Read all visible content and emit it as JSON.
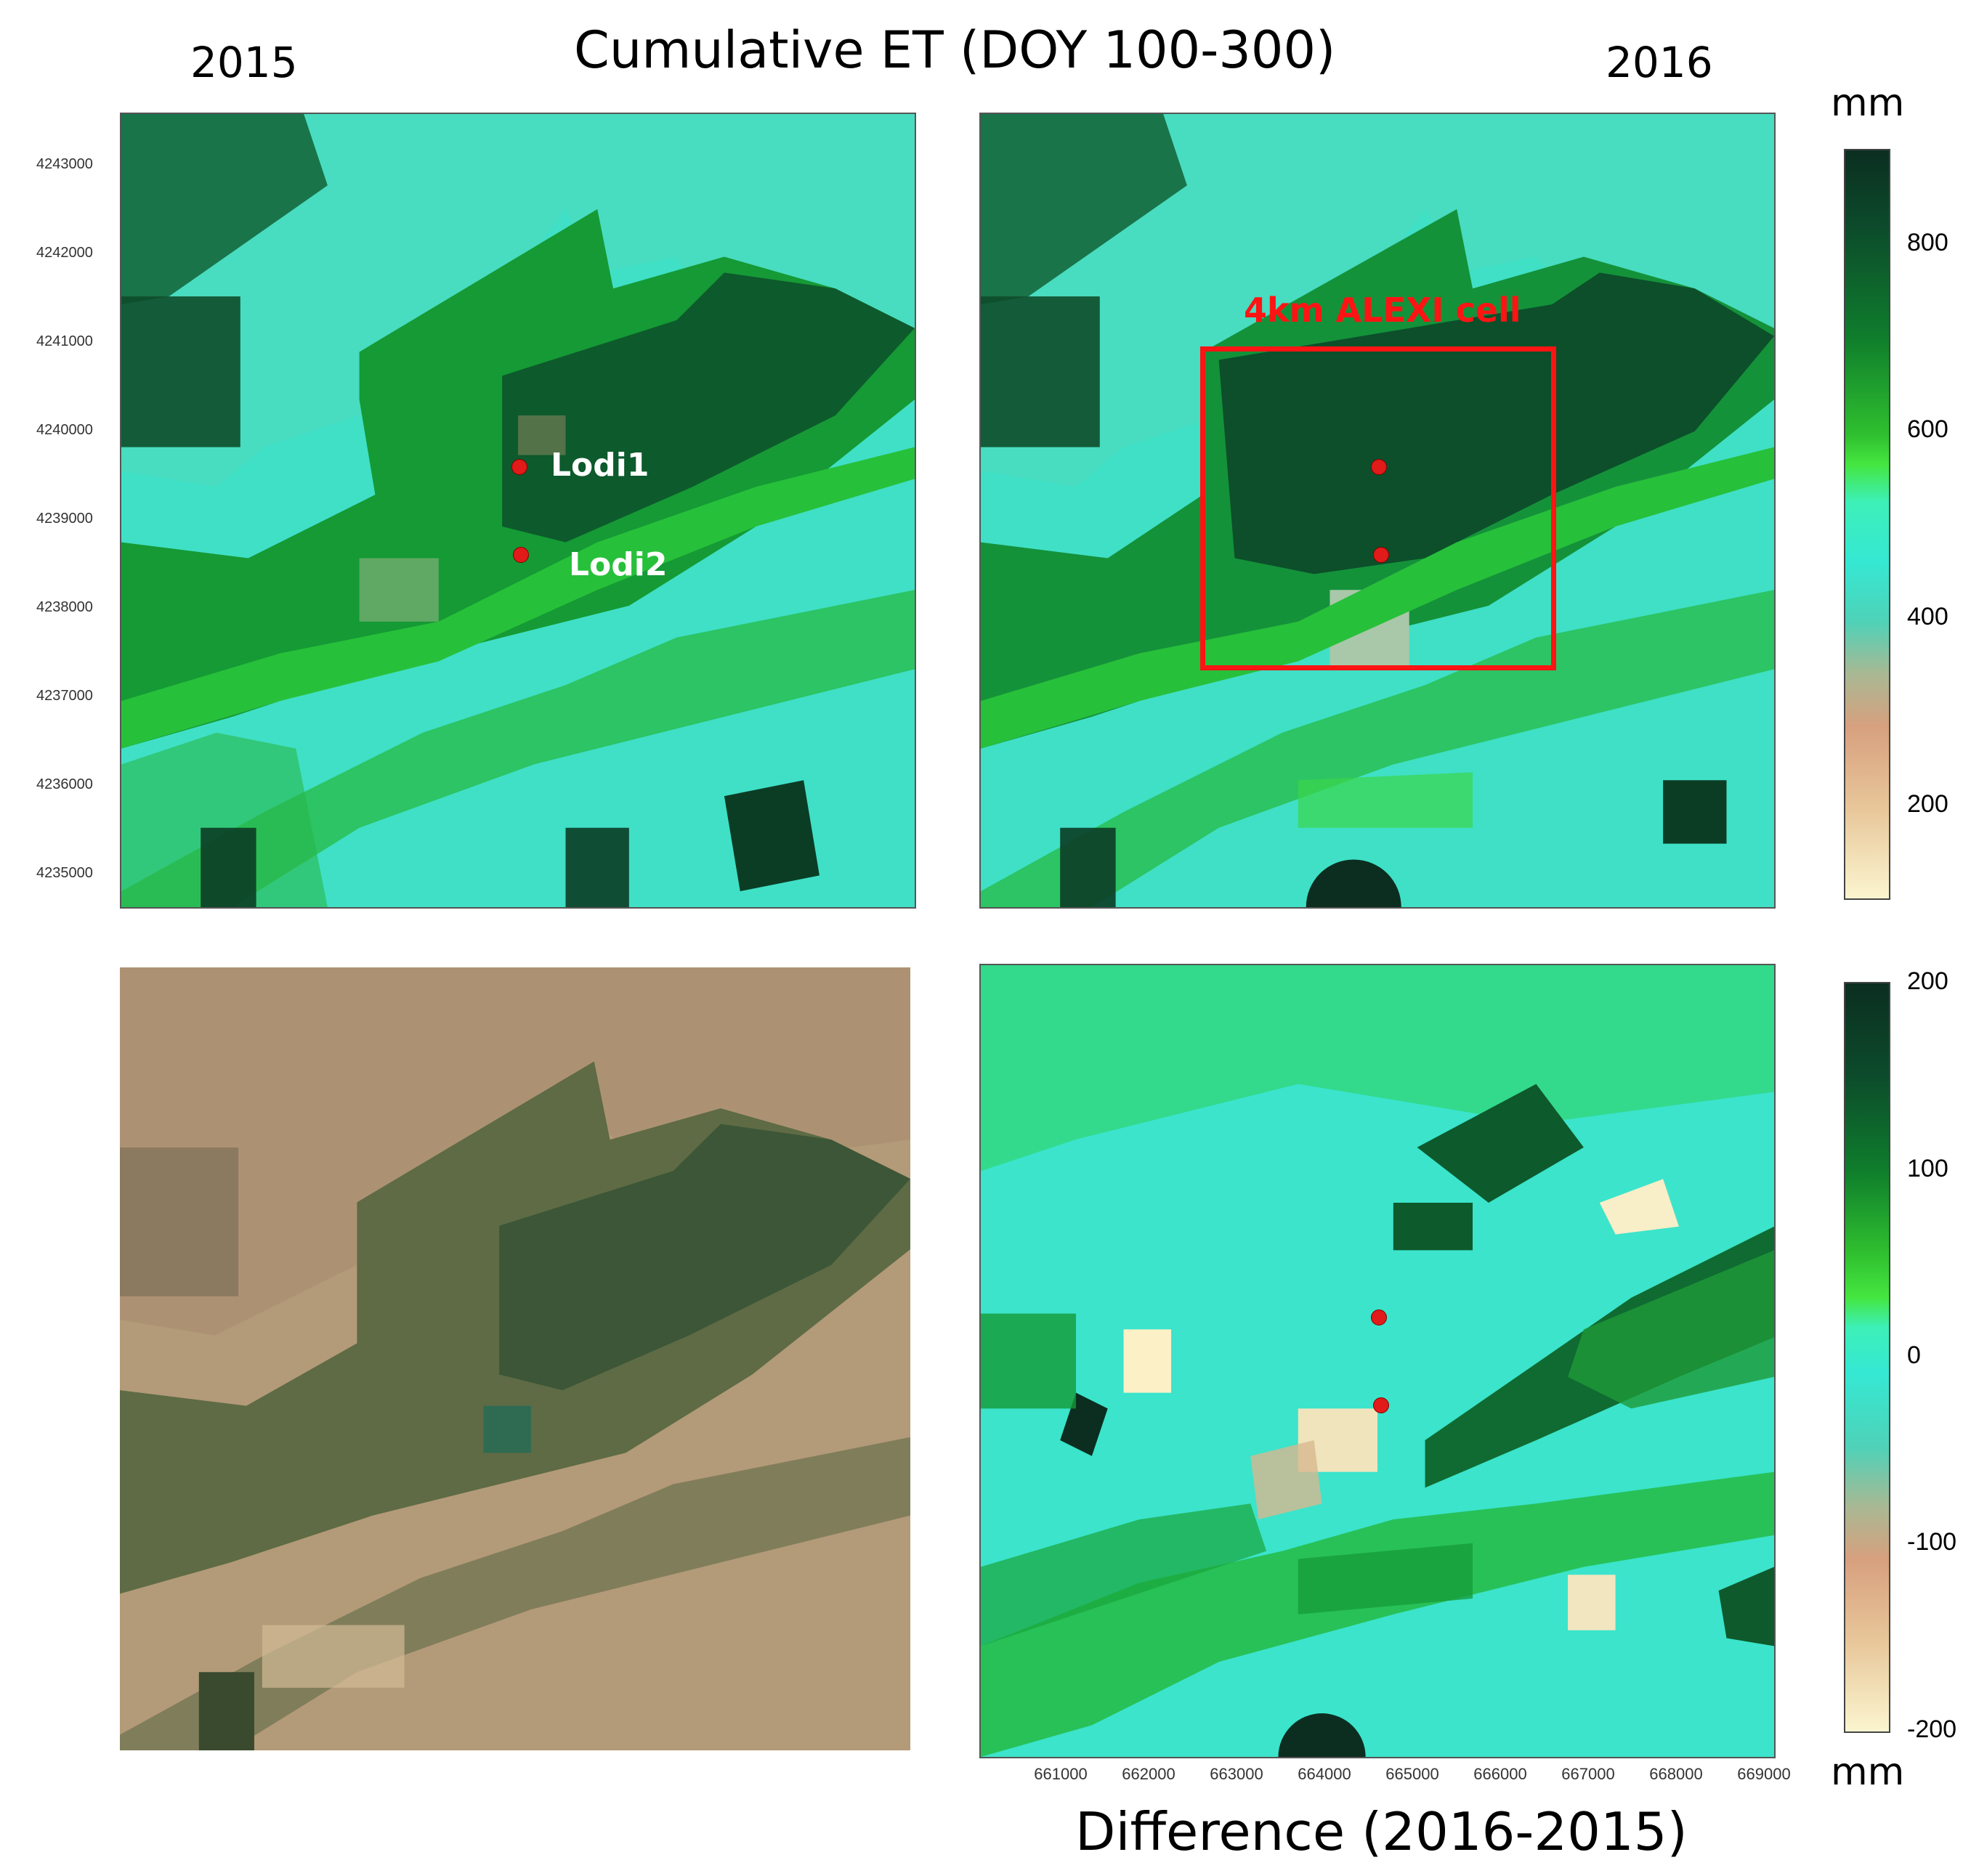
{
  "figure": {
    "main_title": "Cumulative ET (DOY 100-300)",
    "year_left": "2015",
    "year_right": "2016",
    "diff_title": "Difference (2016-2015)",
    "unit_top": "mm",
    "unit_bottom": "mm"
  },
  "axes": {
    "y_ticks": [
      "4243000",
      "4242000",
      "4241000",
      "4240000",
      "4239000",
      "4238000",
      "4237000",
      "4236000",
      "4235000"
    ],
    "x_ticks": [
      "661000",
      "662000",
      "663000",
      "664000",
      "665000",
      "666000",
      "667000",
      "668000",
      "669000"
    ]
  },
  "colorbar_et": {
    "ticks": [
      "800",
      "600",
      "400",
      "200"
    ],
    "colors": [
      "#0b2e20",
      "#0f7d2c",
      "#45e640",
      "#35e8d3",
      "#d7a07e",
      "#fbf5cf"
    ]
  },
  "colorbar_diff": {
    "ticks": [
      "200",
      "100",
      "0",
      "-100",
      "-200"
    ],
    "colors": [
      "#0b2e20",
      "#0f7d2c",
      "#45e640",
      "#35e8d3",
      "#d7a07e",
      "#fbf5cf"
    ]
  },
  "sites": {
    "lodi1": "Lodi1",
    "lodi2": "Lodi2"
  },
  "annotation": {
    "alexi_cell": "4km ALEXI cell",
    "box_color": "#ff1414"
  }
}
